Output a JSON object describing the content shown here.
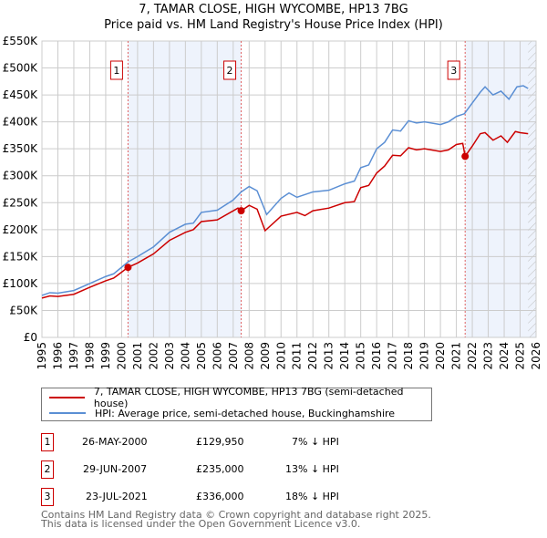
{
  "chart_data": {
    "type": "line",
    "title": "7, TAMAR CLOSE, HIGH WYCOMBE, HP13 7BG",
    "subtitle": "Price paid vs. HM Land Registry's House Price Index (HPI)",
    "xlim": [
      1995,
      2026
    ],
    "ylim": [
      0,
      550000
    ],
    "x_ticks": [
      "1995",
      "1996",
      "1997",
      "1998",
      "1999",
      "2000",
      "2001",
      "2002",
      "2003",
      "2004",
      "2005",
      "2006",
      "2007",
      "2008",
      "2009",
      "2010",
      "2011",
      "2012",
      "2013",
      "2014",
      "2015",
      "2016",
      "2017",
      "2018",
      "2019",
      "2020",
      "2021",
      "2022",
      "2023",
      "2024",
      "2025",
      "2026"
    ],
    "y_ticks": [
      {
        "v": 0,
        "l": "£0"
      },
      {
        "v": 50000,
        "l": "£50K"
      },
      {
        "v": 100000,
        "l": "£100K"
      },
      {
        "v": 150000,
        "l": "£150K"
      },
      {
        "v": 200000,
        "l": "£200K"
      },
      {
        "v": 250000,
        "l": "£250K"
      },
      {
        "v": 300000,
        "l": "£300K"
      },
      {
        "v": 350000,
        "l": "£350K"
      },
      {
        "v": 400000,
        "l": "£400K"
      },
      {
        "v": 450000,
        "l": "£450K"
      },
      {
        "v": 500000,
        "l": "£500K"
      },
      {
        "v": 550000,
        "l": "£550K"
      }
    ],
    "grid": true,
    "series": [
      {
        "name": "7, TAMAR CLOSE, HIGH WYCOMBE, HP13 7BG (semi-detached house)",
        "color": "#cc0000",
        "x": [
          1995,
          1995.5,
          1996,
          1997,
          1998,
          1999,
          1999.5,
          2000.4,
          2001,
          2002,
          2003,
          2004,
          2004.5,
          2005,
          2006,
          2007.3,
          2007.5,
          2008,
          2008.5,
          2009,
          2010,
          2011,
          2011.5,
          2012,
          2013,
          2014,
          2014.6,
          2015,
          2015.5,
          2016,
          2016.5,
          2017,
          2017.5,
          2018,
          2018.5,
          2019,
          2020,
          2020.5,
          2021,
          2021.4,
          2021.55,
          2022,
          2022.5,
          2022.8,
          2023.3,
          2023.8,
          2024.2,
          2024.7,
          2025,
          2025.5
        ],
        "y": [
          73000,
          77000,
          76000,
          80000,
          93000,
          105000,
          110000,
          130000,
          138000,
          155000,
          180000,
          195000,
          200000,
          215000,
          218000,
          240000,
          235000,
          245000,
          238000,
          198000,
          225000,
          232000,
          226000,
          235000,
          240000,
          250000,
          252000,
          278000,
          282000,
          305000,
          318000,
          338000,
          337000,
          352000,
          348000,
          350000,
          345000,
          348000,
          358000,
          360000,
          336000,
          355000,
          378000,
          380000,
          366000,
          374000,
          362000,
          382000,
          380000,
          378000
        ]
      },
      {
        "name": "HPI: Average price, semi-detached house, Buckinghamshire",
        "color": "#5b8fd4",
        "x": [
          1995,
          1995.5,
          1996,
          1997,
          1998,
          1999,
          1999.5,
          2000.4,
          2001,
          2002,
          2003,
          2004,
          2004.5,
          2005,
          2006,
          2007,
          2007.5,
          2008,
          2008.5,
          2009.1,
          2010,
          2010.5,
          2011,
          2012,
          2013,
          2014,
          2014.6,
          2015,
          2015.5,
          2016,
          2016.5,
          2017,
          2017.5,
          2018,
          2018.5,
          2019,
          2020,
          2020.5,
          2021,
          2021.5,
          2022,
          2022.5,
          2022.8,
          2023.3,
          2023.8,
          2024.3,
          2024.8,
          2025.2,
          2025.5
        ],
        "y": [
          78000,
          83000,
          82000,
          87000,
          100000,
          113000,
          118000,
          140000,
          150000,
          168000,
          195000,
          210000,
          212000,
          232000,
          236000,
          255000,
          270000,
          280000,
          272000,
          228000,
          258000,
          268000,
          260000,
          270000,
          273000,
          285000,
          290000,
          315000,
          320000,
          350000,
          362000,
          385000,
          383000,
          402000,
          398000,
          400000,
          395000,
          400000,
          410000,
          415000,
          435000,
          455000,
          465000,
          450000,
          457000,
          442000,
          465000,
          467000,
          462000
        ]
      }
    ],
    "sales": [
      {
        "id": "1",
        "x": 2000.4,
        "price": 129950,
        "date": "26-MAY-2000",
        "price_label": "£129,950",
        "hpi": "7% ↓ HPI"
      },
      {
        "id": "2",
        "x": 2007.5,
        "price": 235000,
        "date": "29-JUN-2007",
        "price_label": "£235,000",
        "hpi": "13% ↓ HPI"
      },
      {
        "id": "3",
        "x": 2021.55,
        "price": 336000,
        "date": "23-JUL-2021",
        "price_label": "£336,000",
        "hpi": "18% ↓ HPI"
      }
    ],
    "shaded_ranges": [
      [
        2000.4,
        2007.5
      ],
      [
        2021.55,
        2026
      ]
    ],
    "forecast_hatch_from": 2025.5,
    "legend_placement": "below"
  },
  "footer": {
    "line1": "Contains HM Land Registry data © Crown copyright and database right 2025.",
    "line2": "This data is licensed under the Open Government Licence v3.0."
  }
}
